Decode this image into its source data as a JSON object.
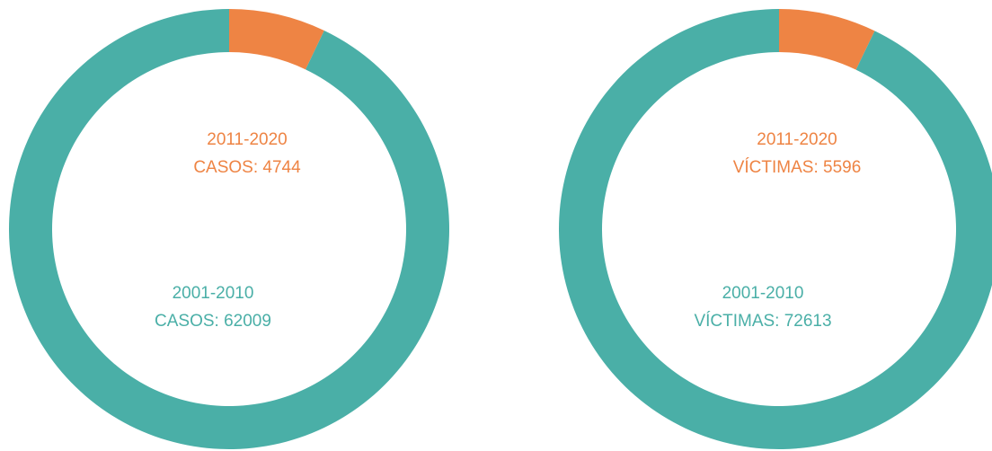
{
  "chart_data": [
    {
      "type": "donut",
      "categories": [
        "2011-2020",
        "2001-2010"
      ],
      "values": [
        4744,
        62009
      ],
      "value_labels": [
        "CASOS: 4744",
        "CASOS: 62009"
      ],
      "colors": [
        "#ee8444",
        "#4aafa7"
      ]
    },
    {
      "type": "donut",
      "categories": [
        "2011-2020",
        "2001-2010"
      ],
      "values": [
        5596,
        72613
      ],
      "value_labels": [
        "VÍCTIMAS: 5596",
        "VÍCTIMAS: 72613"
      ],
      "colors": [
        "#ee8444",
        "#4aafa7"
      ]
    }
  ]
}
